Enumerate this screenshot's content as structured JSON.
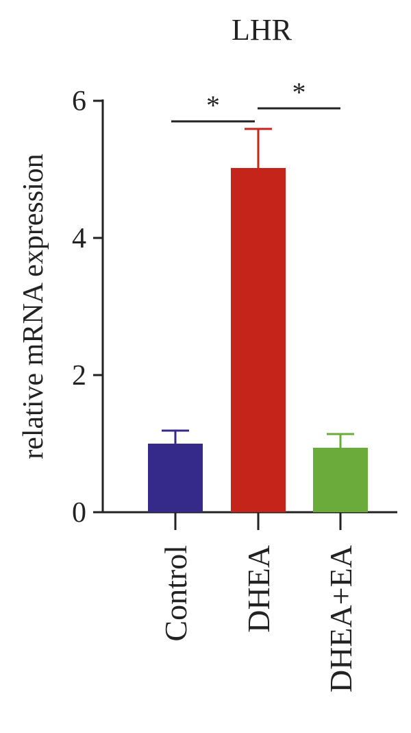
{
  "chart_data": {
    "type": "bar",
    "title": "LHR",
    "xlabel": "",
    "ylabel": "relative mRNA expression",
    "ylim": [
      0,
      6
    ],
    "yticks": [
      0,
      2,
      4,
      6
    ],
    "categories": [
      "Control",
      "DHEA",
      "DHEA+EA"
    ],
    "values": [
      1.0,
      5.02,
      0.94
    ],
    "errors": [
      0.19,
      0.57,
      0.2
    ],
    "colors": [
      "#35298a",
      "#c42419",
      "#6aab3c"
    ],
    "significance": [
      {
        "from": "Control",
        "to": "DHEA",
        "label": "*"
      },
      {
        "from": "DHEA",
        "to": "DHEA+EA",
        "label": "*"
      }
    ],
    "grid": false,
    "legend": "none"
  }
}
